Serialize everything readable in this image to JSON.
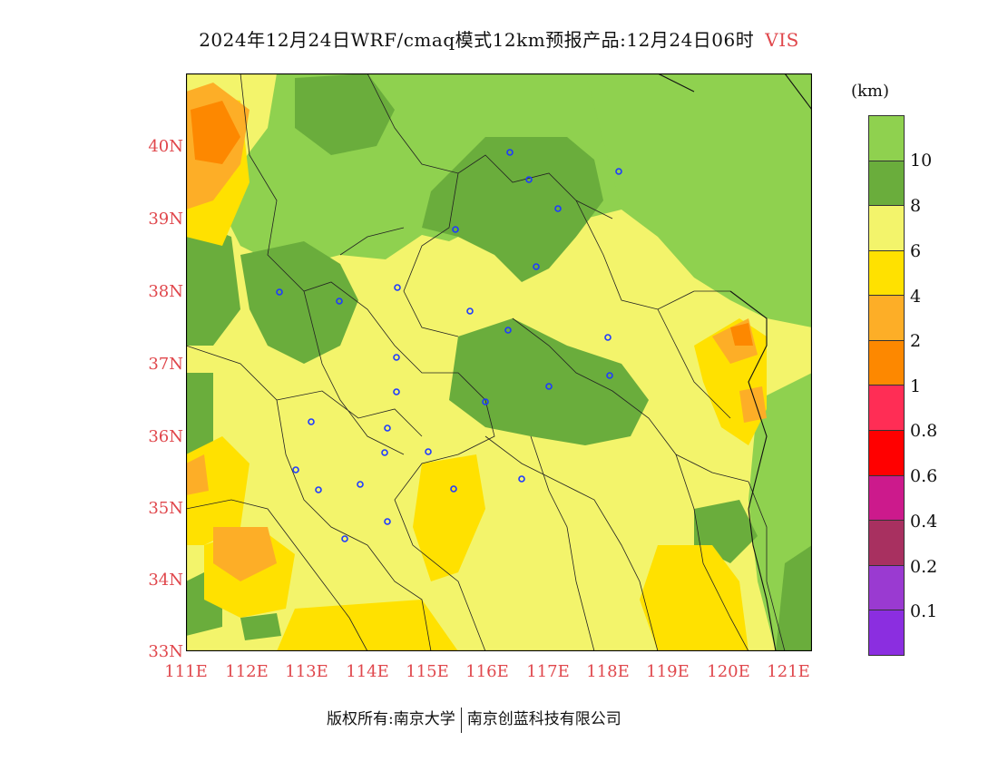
{
  "title": "2024年12月24日WRF/cmaq模式12km预报产品:12月24日06时",
  "variable": "VIS",
  "unit": "(km)",
  "lat_labels": [
    "40N",
    "39N",
    "38N",
    "37N",
    "36N",
    "35N",
    "34N",
    "33N"
  ],
  "lon_labels": [
    "111E",
    "112E",
    "113E",
    "114E",
    "115E",
    "116E",
    "117E",
    "118E",
    "119E",
    "120E",
    "121E"
  ],
  "colorbar": {
    "colors": [
      "#8fd14f",
      "#6aad3c",
      "#f3f46b",
      "#ffe100",
      "#fdae27",
      "#fd8800",
      "#ff2d55",
      "#ff0000",
      "#cc1a8c",
      "#a83060",
      "#9a3ad1",
      "#8b2ee0"
    ],
    "labels": [
      "10",
      "8",
      "6",
      "4",
      "2",
      "1",
      "0.8",
      "0.6",
      "0.4",
      "0.2",
      "0.1"
    ]
  },
  "footer": {
    "left": "版权所有:南京大学",
    "right": "南京创蓝科技有限公司"
  }
}
